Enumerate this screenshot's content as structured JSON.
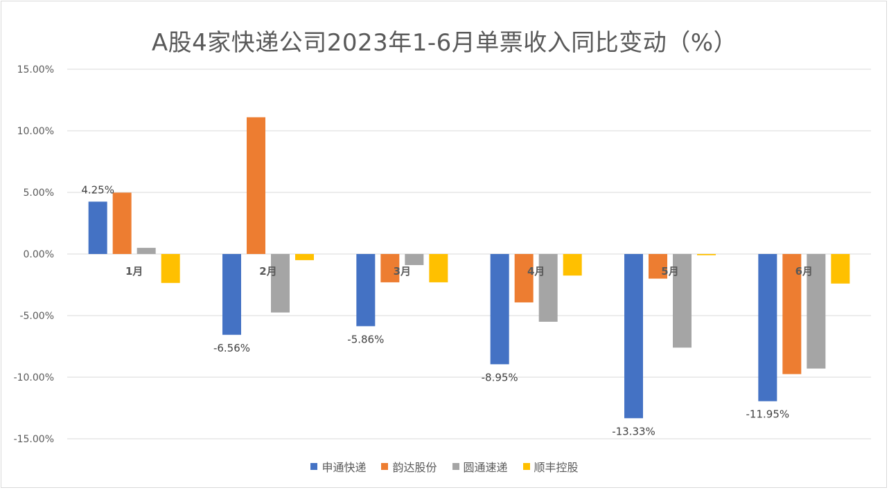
{
  "chart_data": {
    "type": "bar",
    "title": "A股4家快递公司2023年1-6月单票收入同比变动（%）",
    "categories": [
      "1月",
      "2月",
      "3月",
      "4月",
      "5月",
      "6月"
    ],
    "series": [
      {
        "name": "申通快递",
        "color": "#4472c4",
        "values": [
          4.25,
          -6.56,
          -5.86,
          -8.95,
          -13.33,
          -11.95
        ]
      },
      {
        "name": "韵达股份",
        "color": "#ed7d31",
        "values": [
          4.98,
          11.1,
          -2.3,
          -3.93,
          -2.0,
          -9.75
        ]
      },
      {
        "name": "圆通速递",
        "color": "#a5a5a5",
        "values": [
          0.5,
          -4.75,
          -0.9,
          -5.5,
          -7.6,
          -9.3
        ]
      },
      {
        "name": "顺丰控股",
        "color": "#ffc000",
        "values": [
          -2.35,
          -0.5,
          -2.3,
          -1.75,
          -0.1,
          -2.4
        ]
      }
    ],
    "data_labels": [
      {
        "series": 0,
        "category": 0,
        "text": "4.25%"
      },
      {
        "series": 0,
        "category": 1,
        "text": "-6.56%"
      },
      {
        "series": 0,
        "category": 2,
        "text": "-5.86%"
      },
      {
        "series": 0,
        "category": 3,
        "text": "-8.95%"
      },
      {
        "series": 0,
        "category": 4,
        "text": "-13.33%"
      },
      {
        "series": 0,
        "category": 5,
        "text": "-11.95%"
      }
    ],
    "y_ticks": [
      "15.00%",
      "10.00%",
      "5.00%",
      "0.00%",
      "-5.00%",
      "-10.00%",
      "-15.00%"
    ],
    "y_tick_values": [
      15,
      10,
      5,
      0,
      -5,
      -10,
      -15
    ],
    "ylim": [
      -15,
      15
    ],
    "grid": true,
    "legend": "bottom"
  }
}
